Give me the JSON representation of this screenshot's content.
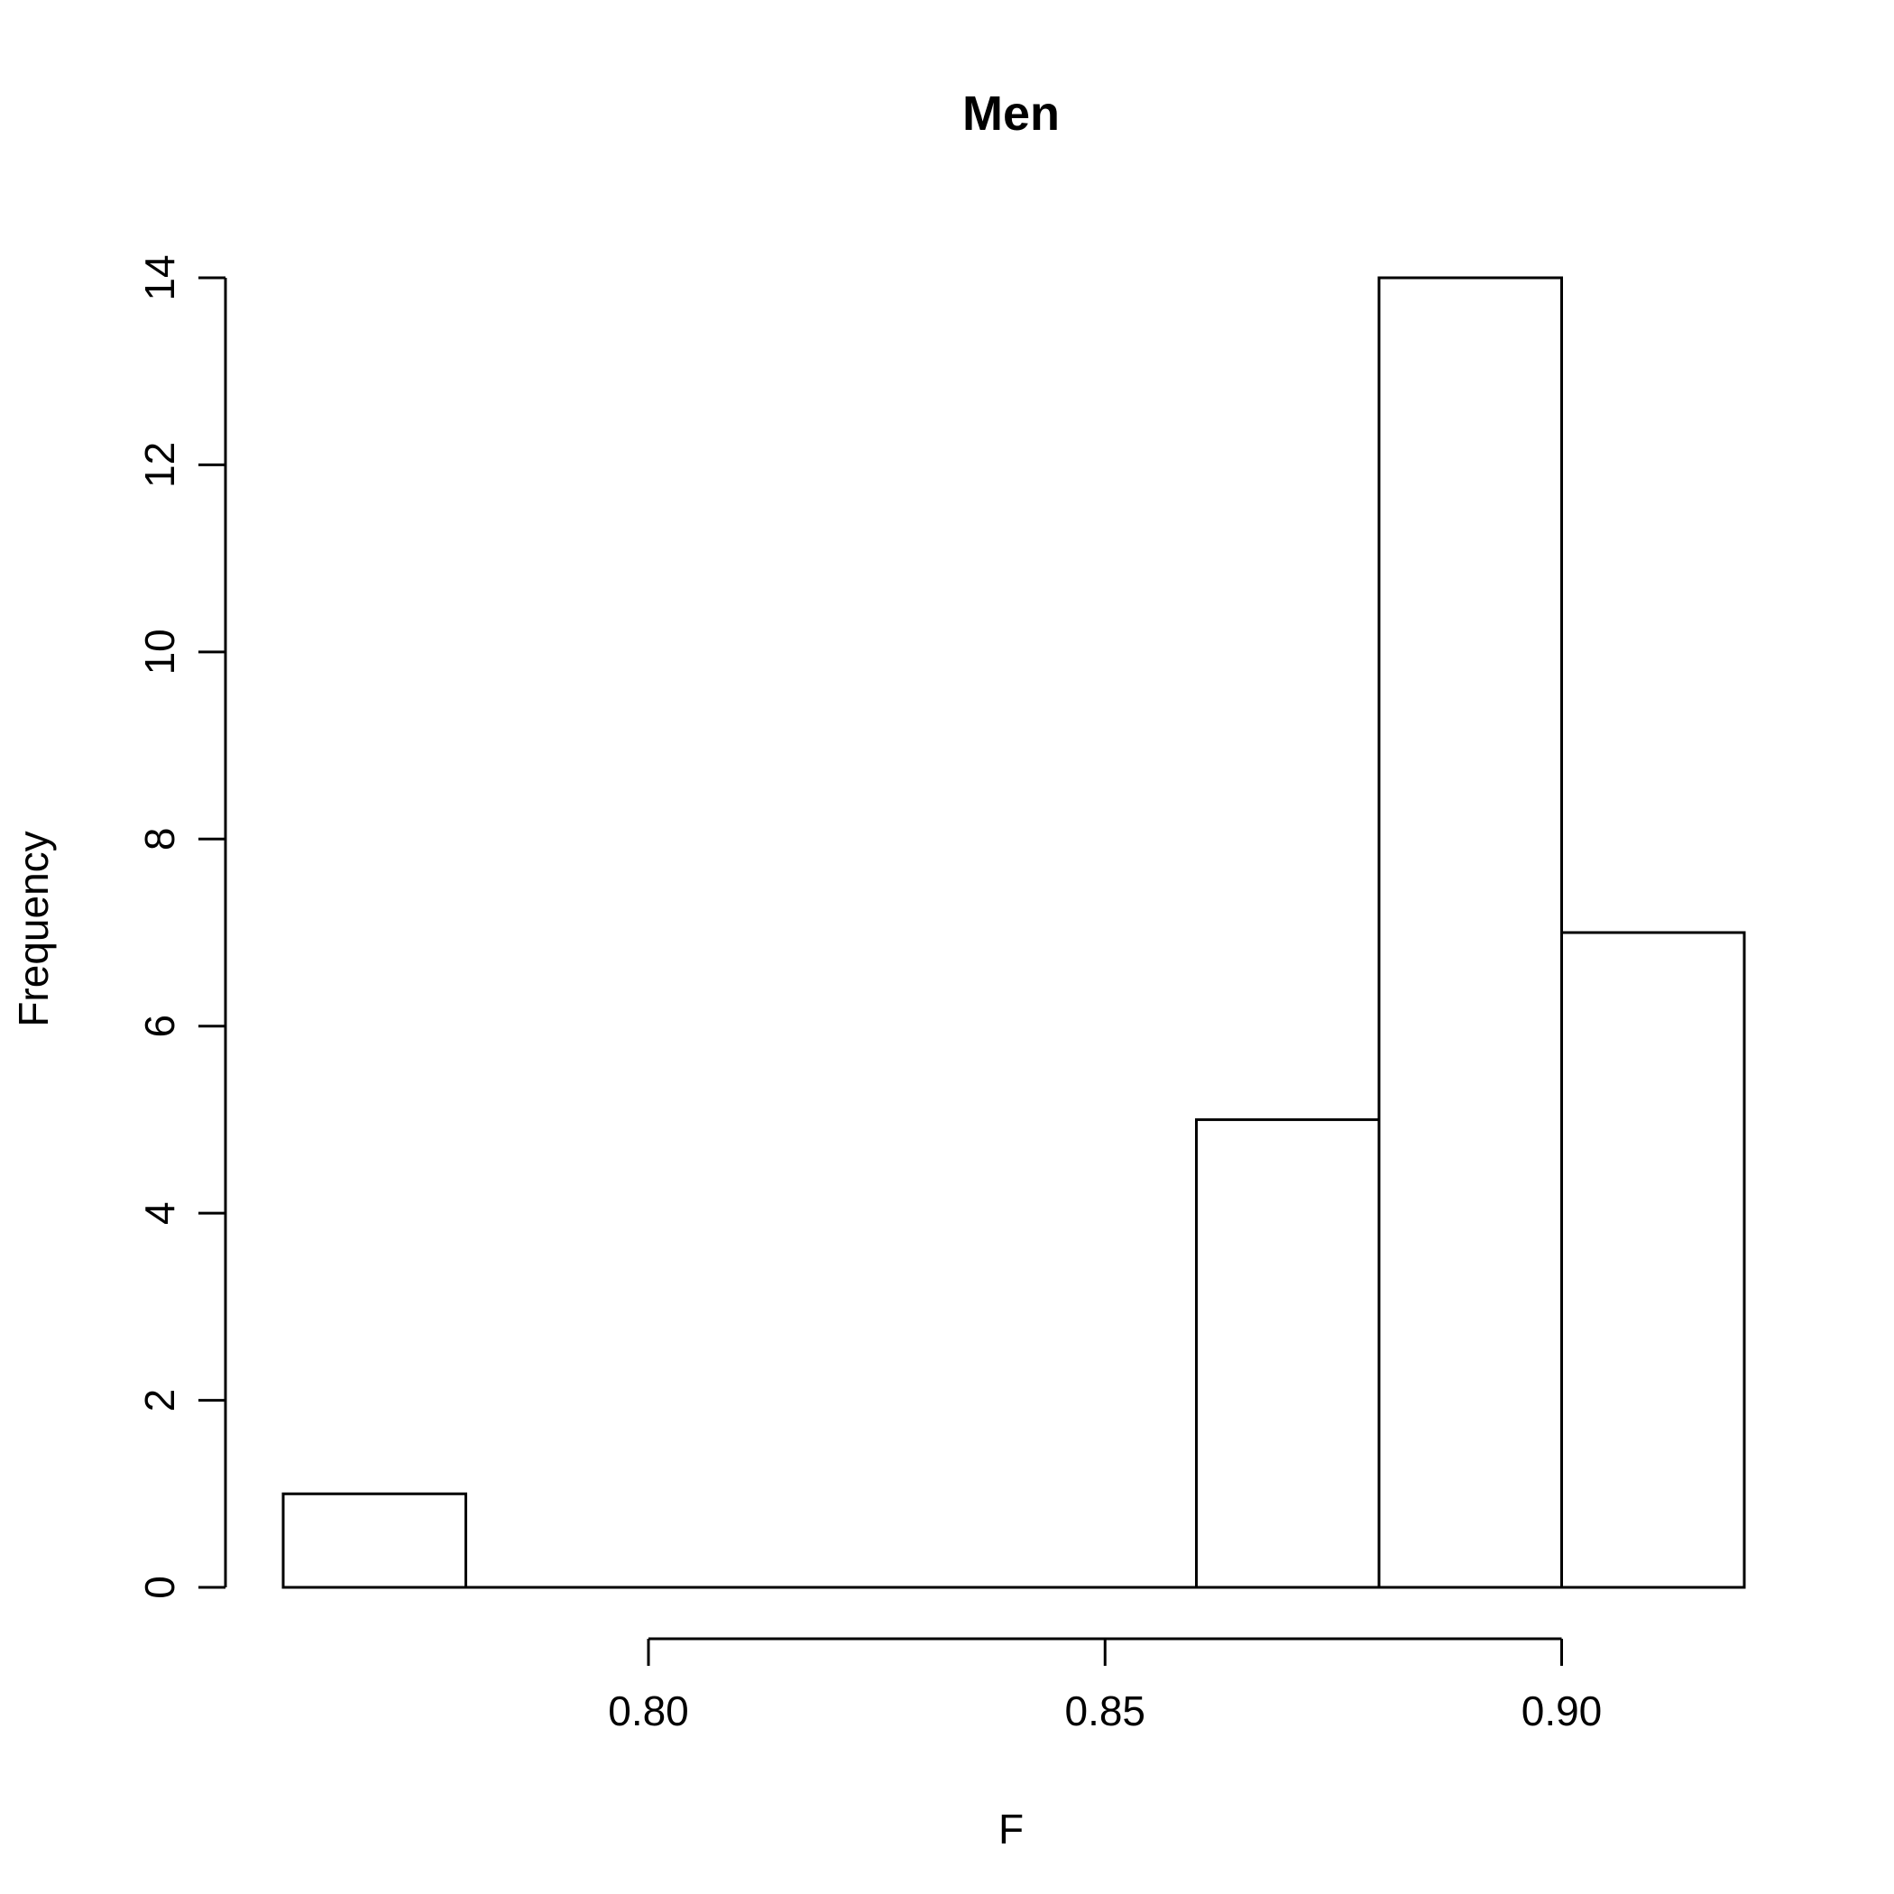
{
  "chart_data": {
    "type": "bar",
    "title": "Men",
    "xlabel": "F",
    "ylabel": "Frequency",
    "bins": [
      {
        "from": 0.76,
        "to": 0.78,
        "count": 1
      },
      {
        "from": 0.78,
        "to": 0.8,
        "count": 0
      },
      {
        "from": 0.8,
        "to": 0.82,
        "count": 0
      },
      {
        "from": 0.82,
        "to": 0.84,
        "count": 0
      },
      {
        "from": 0.84,
        "to": 0.86,
        "count": 0
      },
      {
        "from": 0.86,
        "to": 0.88,
        "count": 5
      },
      {
        "from": 0.88,
        "to": 0.9,
        "count": 14
      },
      {
        "from": 0.9,
        "to": 0.92,
        "count": 7
      }
    ],
    "xlim": [
      0.76,
      0.92
    ],
    "ylim": [
      0,
      14
    ],
    "xticks": [
      {
        "value": 0.8,
        "label": "0.80"
      },
      {
        "value": 0.85,
        "label": "0.85"
      },
      {
        "value": 0.9,
        "label": "0.90"
      }
    ],
    "yticks": [
      {
        "value": 0,
        "label": "0"
      },
      {
        "value": 2,
        "label": "2"
      },
      {
        "value": 4,
        "label": "4"
      },
      {
        "value": 6,
        "label": "6"
      },
      {
        "value": 8,
        "label": "8"
      },
      {
        "value": 10,
        "label": "10"
      },
      {
        "value": 12,
        "label": "12"
      },
      {
        "value": 14,
        "label": "14"
      }
    ],
    "grid": false,
    "bar_fill": "#ffffff",
    "bar_stroke": "#000000"
  }
}
